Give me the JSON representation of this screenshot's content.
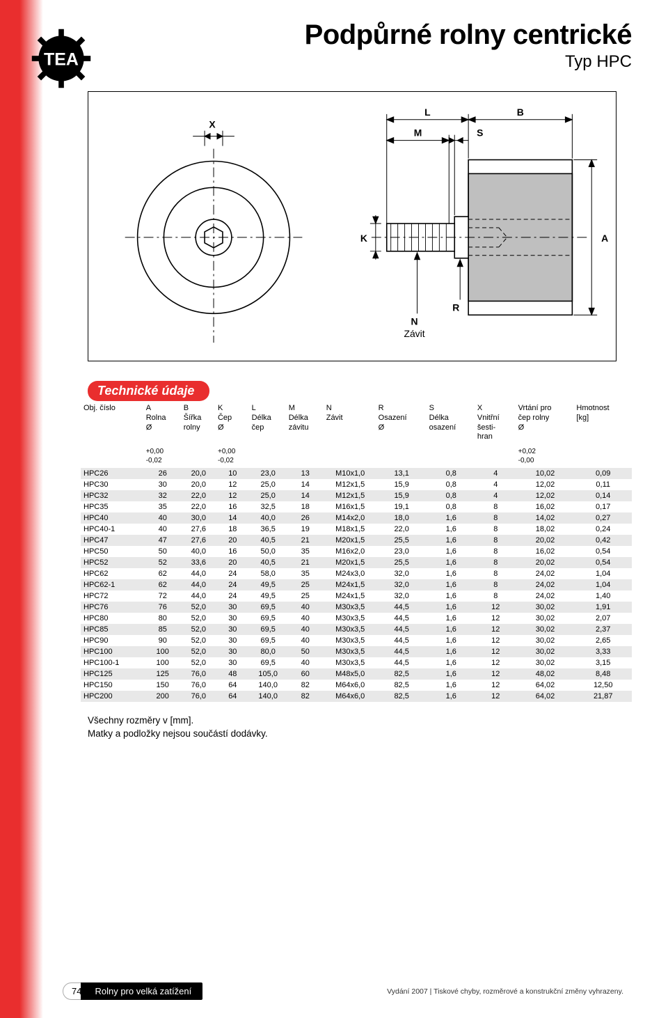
{
  "title": "Podpůrné rolny centrické",
  "subtitle": "Typ HPC",
  "logo_text": "TEA",
  "diagram": {
    "labels": {
      "X": "X",
      "L": "L",
      "B": "B",
      "M": "M",
      "S": "S",
      "K": "K",
      "A": "A",
      "N": "N",
      "R": "R",
      "Zavit": "Závit"
    }
  },
  "section_title": "Technické údaje",
  "columns": [
    {
      "l1": "Obj. číslo",
      "l2": "",
      "l3": "",
      "tol": ""
    },
    {
      "l1": "A",
      "l2": "Rolna",
      "l3": "Ø",
      "tol": "+0,00\n-0,02"
    },
    {
      "l1": "B",
      "l2": "Šířka",
      "l3": "rolny",
      "tol": ""
    },
    {
      "l1": "K",
      "l2": "Čep",
      "l3": "Ø",
      "tol": "+0,00\n-0,02"
    },
    {
      "l1": "L",
      "l2": "Délka",
      "l3": "čep",
      "tol": ""
    },
    {
      "l1": "M",
      "l2": "Délka",
      "l3": "závitu",
      "tol": ""
    },
    {
      "l1": "N",
      "l2": "Závit",
      "l3": "",
      "tol": ""
    },
    {
      "l1": "R",
      "l2": "Osazení",
      "l3": "Ø",
      "tol": ""
    },
    {
      "l1": "S",
      "l2": "Délka",
      "l3": "osazení",
      "tol": ""
    },
    {
      "l1": "X",
      "l2": "Vnitřní",
      "l3": "šesti-\nhran",
      "tol": ""
    },
    {
      "l1": "Vrtání pro",
      "l2": "čep rolny",
      "l3": "Ø",
      "tol": "+0,02\n-0,00"
    },
    {
      "l1": "Hmotnost",
      "l2": "[kg]",
      "l3": "",
      "tol": ""
    }
  ],
  "rows": [
    [
      "HPC26",
      "26",
      "20,0",
      "10",
      "23,0",
      "13",
      "M10x1,0",
      "13,1",
      "0,8",
      "4",
      "10,02",
      "0,09"
    ],
    [
      "HPC30",
      "30",
      "20,0",
      "12",
      "25,0",
      "14",
      "M12x1,5",
      "15,9",
      "0,8",
      "4",
      "12,02",
      "0,11"
    ],
    [
      "HPC32",
      "32",
      "22,0",
      "12",
      "25,0",
      "14",
      "M12x1,5",
      "15,9",
      "0,8",
      "4",
      "12,02",
      "0,14"
    ],
    [
      "HPC35",
      "35",
      "22,0",
      "16",
      "32,5",
      "18",
      "M16x1,5",
      "19,1",
      "0,8",
      "8",
      "16,02",
      "0,17"
    ],
    [
      "HPC40",
      "40",
      "30,0",
      "14",
      "40,0",
      "26",
      "M14x2,0",
      "18,0",
      "1,6",
      "8",
      "14,02",
      "0,27"
    ],
    [
      "HPC40-1",
      "40",
      "27,6",
      "18",
      "36,5",
      "19",
      "M18x1,5",
      "22,0",
      "1,6",
      "8",
      "18,02",
      "0,24"
    ],
    [
      "HPC47",
      "47",
      "27,6",
      "20",
      "40,5",
      "21",
      "M20x1,5",
      "25,5",
      "1,6",
      "8",
      "20,02",
      "0,42"
    ],
    [
      "HPC50",
      "50",
      "40,0",
      "16",
      "50,0",
      "35",
      "M16x2,0",
      "23,0",
      "1,6",
      "8",
      "16,02",
      "0,54"
    ],
    [
      "HPC52",
      "52",
      "33,6",
      "20",
      "40,5",
      "21",
      "M20x1,5",
      "25,5",
      "1,6",
      "8",
      "20,02",
      "0,54"
    ],
    [
      "HPC62",
      "62",
      "44,0",
      "24",
      "58,0",
      "35",
      "M24x3,0",
      "32,0",
      "1,6",
      "8",
      "24,02",
      "1,04"
    ],
    [
      "HPC62-1",
      "62",
      "44,0",
      "24",
      "49,5",
      "25",
      "M24x1,5",
      "32,0",
      "1,6",
      "8",
      "24,02",
      "1,04"
    ],
    [
      "HPC72",
      "72",
      "44,0",
      "24",
      "49,5",
      "25",
      "M24x1,5",
      "32,0",
      "1,6",
      "8",
      "24,02",
      "1,40"
    ],
    [
      "HPC76",
      "76",
      "52,0",
      "30",
      "69,5",
      "40",
      "M30x3,5",
      "44,5",
      "1,6",
      "12",
      "30,02",
      "1,91"
    ],
    [
      "HPC80",
      "80",
      "52,0",
      "30",
      "69,5",
      "40",
      "M30x3,5",
      "44,5",
      "1,6",
      "12",
      "30,02",
      "2,07"
    ],
    [
      "HPC85",
      "85",
      "52,0",
      "30",
      "69,5",
      "40",
      "M30x3,5",
      "44,5",
      "1,6",
      "12",
      "30,02",
      "2,37"
    ],
    [
      "HPC90",
      "90",
      "52,0",
      "30",
      "69,5",
      "40",
      "M30x3,5",
      "44,5",
      "1,6",
      "12",
      "30,02",
      "2,65"
    ],
    [
      "HPC100",
      "100",
      "52,0",
      "30",
      "80,0",
      "50",
      "M30x3,5",
      "44,5",
      "1,6",
      "12",
      "30,02",
      "3,33"
    ],
    [
      "HPC100-1",
      "100",
      "52,0",
      "30",
      "69,5",
      "40",
      "M30x3,5",
      "44,5",
      "1,6",
      "12",
      "30,02",
      "3,15"
    ],
    [
      "HPC125",
      "125",
      "76,0",
      "48",
      "105,0",
      "60",
      "M48x5,0",
      "82,5",
      "1,6",
      "12",
      "48,02",
      "8,48"
    ],
    [
      "HPC150",
      "150",
      "76,0",
      "64",
      "140,0",
      "82",
      "M64x6,0",
      "82,5",
      "1,6",
      "12",
      "64,02",
      "12,50"
    ],
    [
      "HPC200",
      "200",
      "76,0",
      "64",
      "140,0",
      "82",
      "M64x6,0",
      "82,5",
      "1,6",
      "12",
      "64,02",
      "21,87"
    ]
  ],
  "notes": [
    "Všechny rozměry v [mm].",
    "Matky a podložky nejsou součástí dodávky."
  ],
  "footer": {
    "page_number": "74",
    "section_label": "Rolny pro velká zatížení",
    "imprint": "Vydání 2007  |  Tiskové chyby, rozměrové a konstrukční změny vyhrazeny."
  },
  "colors": {
    "accent": "#e92e2e",
    "row_shade": "#e8e8e8"
  }
}
